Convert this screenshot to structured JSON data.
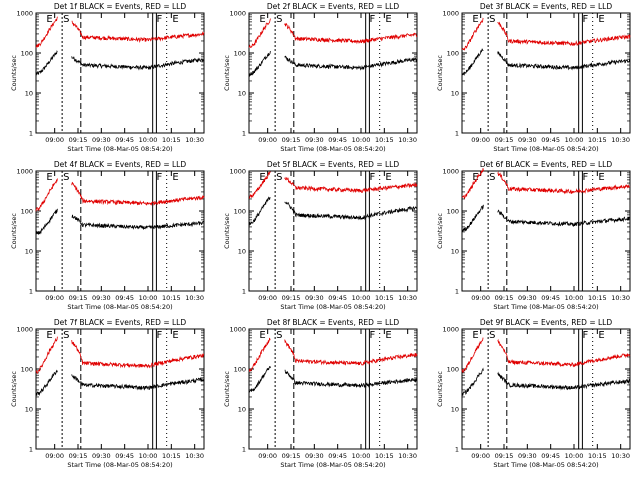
{
  "colors": {
    "events": "#000000",
    "lld": "#e00000",
    "background": "#ffffff",
    "axis": "#000000"
  },
  "chart_data": [
    {
      "type": "line",
      "title": "Det 1f BLACK = Events, RED = LLD",
      "xlabel": "Start Time (08-Mar-05 08:54:20)",
      "ylabel": "Counts/sec",
      "y_scale": "log",
      "ylim": [
        1,
        1000
      ],
      "x_tick_labels": [
        "09:00",
        "09:15",
        "09:30",
        "09:45",
        "10:00",
        "10:15",
        "10:30"
      ],
      "y_tick_labels": [
        "1",
        "10",
        "100",
        "1000"
      ],
      "markers": [
        "E",
        "S",
        "F",
        "E"
      ],
      "series": [
        {
          "role": "events",
          "level": 50,
          "rise": 80,
          "tail": 70
        },
        {
          "role": "lld",
          "level": 250,
          "rise": 600,
          "tail": 300
        }
      ]
    },
    {
      "type": "line",
      "title": "Det 2f BLACK = Events, RED = LLD",
      "xlabel": "Start Time (08-Mar-05 08:54:20)",
      "ylabel": "Counts/sec",
      "y_scale": "log",
      "ylim": [
        1,
        1000
      ],
      "x_tick_labels": [
        "09:00",
        "09:15",
        "09:30",
        "09:45",
        "10:00",
        "10:15",
        "10:30"
      ],
      "y_tick_labels": [
        "1",
        "10",
        "100",
        "1000"
      ],
      "markers": [
        "E",
        "S",
        "F",
        "E"
      ],
      "series": [
        {
          "role": "events",
          "level": 50,
          "rise": 80,
          "tail": 70
        },
        {
          "role": "lld",
          "level": 230,
          "rise": 550,
          "tail": 290
        }
      ]
    },
    {
      "type": "line",
      "title": "Det 3f BLACK = Events, RED = LLD",
      "xlabel": "Start Time (08-Mar-05 08:54:20)",
      "ylabel": "Counts/sec",
      "y_scale": "log",
      "ylim": [
        1,
        1000
      ],
      "x_tick_labels": [
        "09:00",
        "09:15",
        "09:30",
        "09:45",
        "10:00",
        "10:15",
        "10:30"
      ],
      "y_tick_labels": [
        "1",
        "10",
        "100",
        "1000"
      ],
      "markers": [
        "E",
        "S",
        "F",
        "E"
      ],
      "series": [
        {
          "role": "events",
          "level": 50,
          "rise": 100,
          "tail": 65
        },
        {
          "role": "lld",
          "level": 200,
          "rise": 600,
          "tail": 260
        }
      ]
    },
    {
      "type": "line",
      "title": "Det 4f BLACK = Events, RED = LLD",
      "xlabel": "Start Time (08-Mar-05 08:54:20)",
      "ylabel": "Counts/sec",
      "y_scale": "log",
      "ylim": [
        1,
        1000
      ],
      "x_tick_labels": [
        "09:00",
        "09:15",
        "09:30",
        "09:45",
        "10:00",
        "10:15",
        "10:30"
      ],
      "y_tick_labels": [
        "1",
        "10",
        "100",
        "1000"
      ],
      "markers": [
        "E",
        "S",
        "F",
        "E"
      ],
      "series": [
        {
          "role": "events",
          "level": 45,
          "rise": 80,
          "tail": 50
        },
        {
          "role": "lld",
          "level": 180,
          "rise": 500,
          "tail": 220
        }
      ]
    },
    {
      "type": "line",
      "title": "Det 5f BLACK = Events, RED = LLD",
      "xlabel": "Start Time (08-Mar-05 08:54:20)",
      "ylabel": "Counts/sec",
      "y_scale": "log",
      "ylim": [
        1,
        1000
      ],
      "x_tick_labels": [
        "09:00",
        "09:15",
        "09:30",
        "09:45",
        "10:00",
        "10:15",
        "10:30"
      ],
      "y_tick_labels": [
        "1",
        "10",
        "100",
        "1000"
      ],
      "markers": [
        "E",
        "S",
        "F",
        "E"
      ],
      "series": [
        {
          "role": "events",
          "level": 80,
          "rise": 180,
          "tail": 120
        },
        {
          "role": "lld",
          "level": 380,
          "rise": 700,
          "tail": 450
        }
      ]
    },
    {
      "type": "line",
      "title": "Det 6f BLACK = Events, RED = LLD",
      "xlabel": "Start Time (08-Mar-05 08:54:20)",
      "ylabel": "Counts/sec",
      "y_scale": "log",
      "ylim": [
        1,
        1000
      ],
      "x_tick_labels": [
        "09:00",
        "09:15",
        "09:30",
        "09:45",
        "10:00",
        "10:15",
        "10:30"
      ],
      "y_tick_labels": [
        "1",
        "10",
        "100",
        "1000"
      ],
      "markers": [
        "E",
        "S",
        "F",
        "E"
      ],
      "series": [
        {
          "role": "events",
          "level": 55,
          "rise": 100,
          "tail": 65
        },
        {
          "role": "lld",
          "level": 360,
          "rise": 900,
          "tail": 420
        }
      ]
    },
    {
      "type": "line",
      "title": "Det 7f BLACK = Events, RED = LLD",
      "xlabel": "Start Time (08-Mar-05 08:54:20)",
      "ylabel": "Counts/sec",
      "y_scale": "log",
      "ylim": [
        1,
        1000
      ],
      "x_tick_labels": [
        "09:00",
        "09:15",
        "09:30",
        "09:45",
        "10:00",
        "10:15",
        "10:30"
      ],
      "y_tick_labels": [
        "1",
        "10",
        "100",
        "1000"
      ],
      "markers": [
        "E",
        "S",
        "F",
        "E"
      ],
      "series": [
        {
          "role": "events",
          "level": 40,
          "rise": 70,
          "tail": 55
        },
        {
          "role": "lld",
          "level": 140,
          "rise": 500,
          "tail": 220
        }
      ]
    },
    {
      "type": "line",
      "title": "Det 8f BLACK = Events, RED = LLD",
      "xlabel": "Start Time (08-Mar-05 08:54:20)",
      "ylabel": "Counts/sec",
      "y_scale": "log",
      "ylim": [
        1,
        1000
      ],
      "x_tick_labels": [
        "09:00",
        "09:15",
        "09:30",
        "09:45",
        "10:00",
        "10:15",
        "10:30"
      ],
      "y_tick_labels": [
        "1",
        "10",
        "100",
        "1000"
      ],
      "markers": [
        "E",
        "S",
        "F",
        "E"
      ],
      "series": [
        {
          "role": "events",
          "level": 45,
          "rise": 90,
          "tail": 55
        },
        {
          "role": "lld",
          "level": 160,
          "rise": 500,
          "tail": 230
        }
      ]
    },
    {
      "type": "line",
      "title": "Det 9f BLACK = Events, RED = LLD",
      "xlabel": "Start Time (08-Mar-05 08:54:20)",
      "ylabel": "Counts/sec",
      "y_scale": "log",
      "ylim": [
        1,
        1000
      ],
      "x_tick_labels": [
        "09:00",
        "09:15",
        "09:30",
        "09:45",
        "10:00",
        "10:15",
        "10:30"
      ],
      "y_tick_labels": [
        "1",
        "10",
        "100",
        "1000"
      ],
      "markers": [
        "E",
        "S",
        "F",
        "E"
      ],
      "series": [
        {
          "role": "events",
          "level": 40,
          "rise": 75,
          "tail": 50
        },
        {
          "role": "lld",
          "level": 150,
          "rise": 500,
          "tail": 230
        }
      ]
    }
  ]
}
